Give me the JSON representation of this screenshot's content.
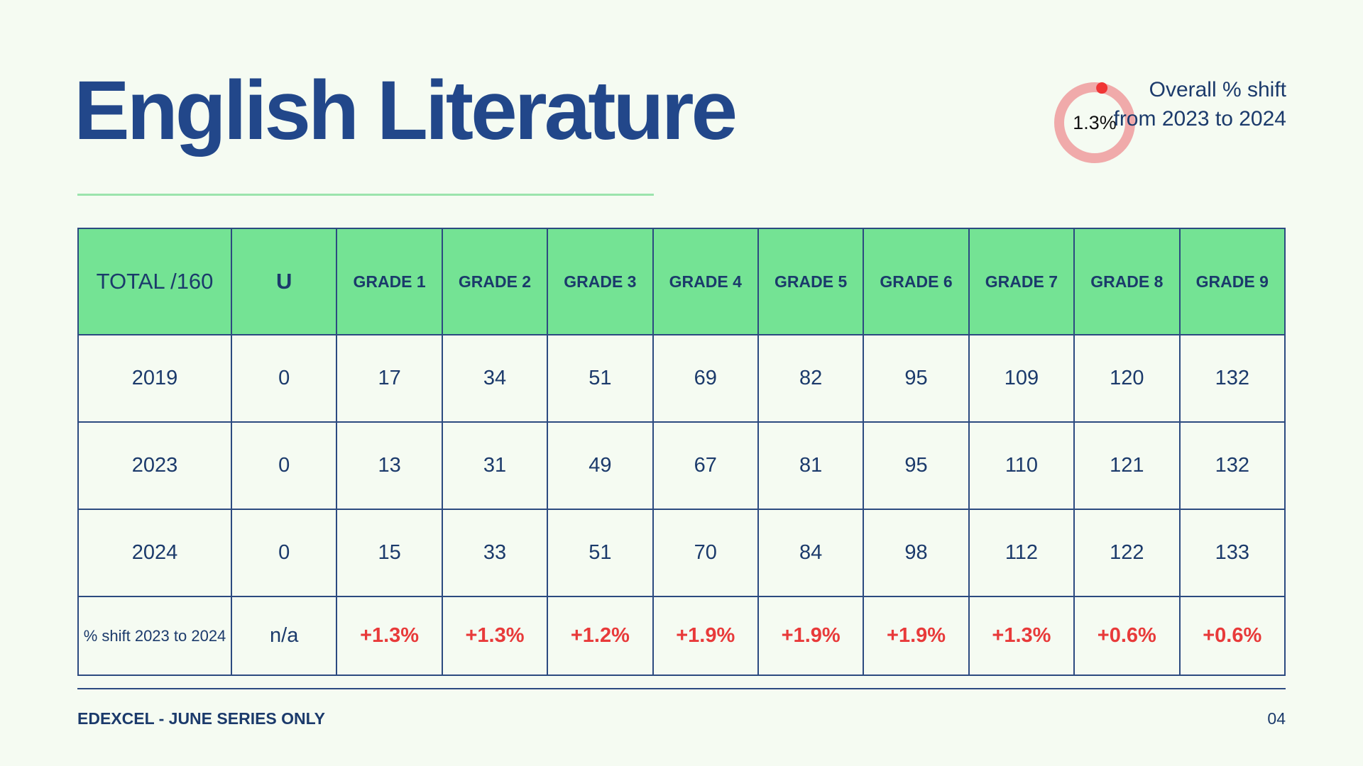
{
  "title": "English Literature",
  "overall": {
    "value_label": "1.3%",
    "value_percent": 1.3,
    "caption": "Overall % shift from 2023 to 2024",
    "ring_color": "#f0aaaa",
    "marker_color": "#f03535"
  },
  "table": {
    "headers": [
      "TOTAL /160",
      "U",
      "GRADE 1",
      "GRADE 2",
      "GRADE 3",
      "GRADE 4",
      "GRADE 5",
      "GRADE 6",
      "GRADE 7",
      "GRADE 8",
      "GRADE 9"
    ],
    "rows": [
      [
        "2019",
        "0",
        "17",
        "34",
        "51",
        "69",
        "82",
        "95",
        "109",
        "120",
        "132"
      ],
      [
        "2023",
        "0",
        "13",
        "31",
        "49",
        "67",
        "81",
        "95",
        "110",
        "121",
        "132"
      ],
      [
        "2024",
        "0",
        "15",
        "33",
        "51",
        "70",
        "84",
        "98",
        "112",
        "122",
        "133"
      ]
    ],
    "shift_row": [
      "% shift 2023 to 2024",
      "n/a",
      "+1.3%",
      "+1.3%",
      "+1.2%",
      "+1.9%",
      "+1.9%",
      "+1.9%",
      "+1.3%",
      "+0.6%",
      "+0.6%"
    ]
  },
  "colors": {
    "header_bg": "#74e394",
    "navy": "#22478a",
    "positive": "#e83a3a",
    "background": "#f5fbf2"
  },
  "footer": {
    "left": "EDEXCEL - JUNE SERIES ONLY",
    "page": "04"
  }
}
